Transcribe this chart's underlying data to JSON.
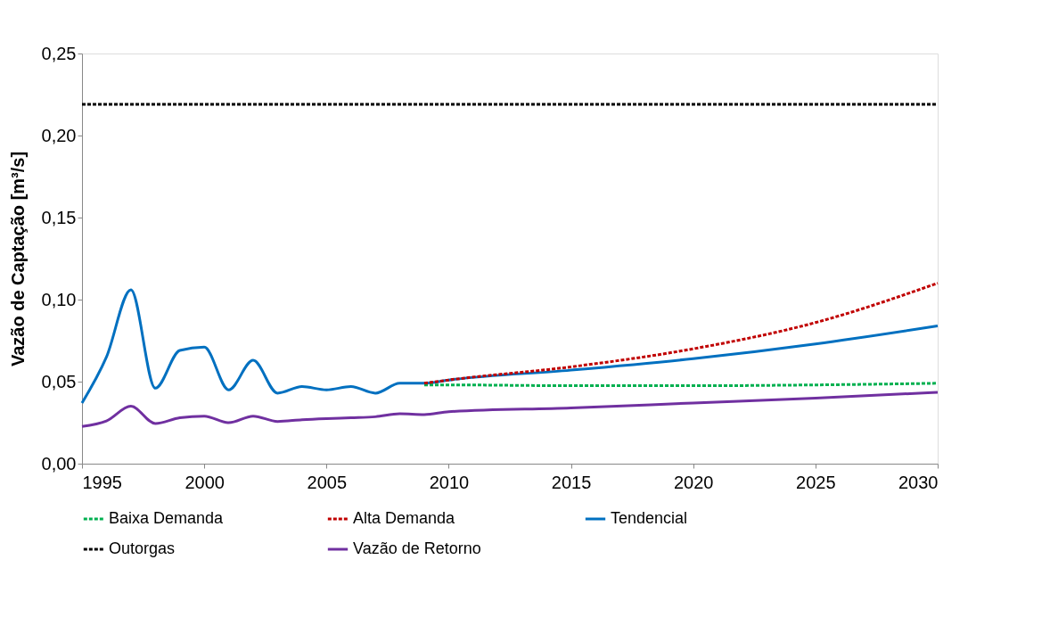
{
  "chart_data": {
    "type": "line",
    "ylabel": "Vazão de Captação [m³/s]",
    "xlim": [
      1995,
      2030
    ],
    "xticks": [
      1995,
      2000,
      2005,
      2010,
      2015,
      2020,
      2025,
      2030
    ],
    "ylim": [
      0,
      0.25
    ],
    "yticks": [
      {
        "value": 0,
        "label": "0,00"
      },
      {
        "value": 0.05,
        "label": "0,05"
      },
      {
        "value": 0.1,
        "label": "0,10"
      },
      {
        "value": 0.15,
        "label": "0,15"
      },
      {
        "value": 0.2,
        "label": "0,20"
      },
      {
        "value": 0.25,
        "label": "0,25"
      }
    ],
    "grid": false,
    "legend": "bottom",
    "series": [
      {
        "name": "Baixa Demanda",
        "color": "#00b050",
        "line_style": "dashed",
        "x": [
          2009,
          2010,
          2015,
          2020,
          2025,
          2030
        ],
        "values": [
          0.048,
          0.048,
          0.0475,
          0.0475,
          0.048,
          0.049
        ]
      },
      {
        "name": "Alta Demanda",
        "color": "#c00000",
        "line_style": "dashed",
        "x": [
          2009,
          2010,
          2015,
          2020,
          2025,
          2030
        ],
        "values": [
          0.049,
          0.051,
          0.059,
          0.07,
          0.086,
          0.11
        ]
      },
      {
        "name": "Tendencial",
        "color": "#0070c0",
        "line_style": "solid",
        "x": [
          1995,
          1996,
          1997,
          1998,
          1999,
          2000,
          2001,
          2002,
          2003,
          2004,
          2005,
          2006,
          2007,
          2008,
          2009,
          2010,
          2015,
          2020,
          2025,
          2030
        ],
        "values": [
          0.037,
          0.065,
          0.106,
          0.046,
          0.069,
          0.071,
          0.045,
          0.063,
          0.043,
          0.047,
          0.045,
          0.047,
          0.043,
          0.049,
          0.049,
          0.051,
          0.057,
          0.064,
          0.073,
          0.084
        ]
      },
      {
        "name": "Outorgas",
        "color": "#000000",
        "line_style": "dashed",
        "x": [
          1995,
          2030
        ],
        "values": [
          0.219,
          0.219
        ]
      },
      {
        "name": "Vazão de Retorno",
        "color": "#7030a0",
        "line_style": "solid",
        "x": [
          1995,
          1996,
          1997,
          1998,
          1999,
          2000,
          2001,
          2002,
          2003,
          2004,
          2005,
          2006,
          2007,
          2008,
          2009,
          2010,
          2015,
          2020,
          2025,
          2030
        ],
        "values": [
          0.0227,
          0.026,
          0.035,
          0.0245,
          0.028,
          0.029,
          0.025,
          0.029,
          0.0257,
          0.0268,
          0.0275,
          0.028,
          0.0286,
          0.0304,
          0.0299,
          0.0317,
          0.034,
          0.037,
          0.04,
          0.0435
        ]
      }
    ]
  }
}
